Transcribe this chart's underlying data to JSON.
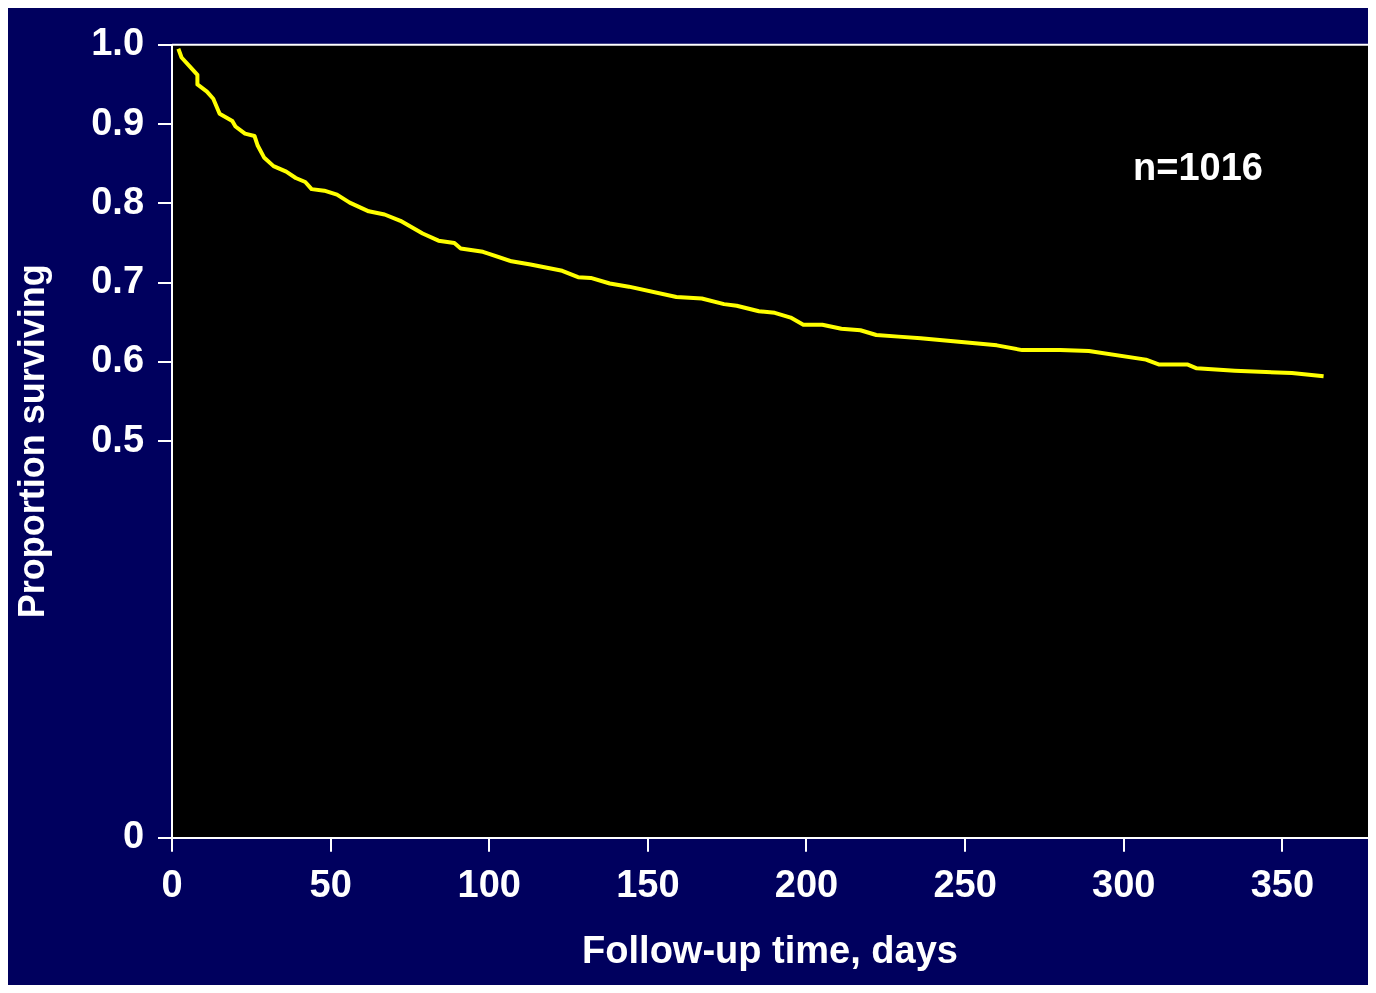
{
  "chart_data": {
    "type": "line",
    "xlabel": "Follow-up time, days",
    "ylabel": "Proportion surviving",
    "annotations": [
      "n=1016"
    ],
    "x": [
      2,
      3,
      6,
      8,
      8,
      11,
      13,
      15,
      19,
      20,
      23,
      26,
      27,
      29,
      32,
      36,
      39,
      42,
      44,
      48,
      52,
      56,
      62,
      67,
      72,
      79,
      84,
      89,
      91,
      98,
      107,
      113,
      123,
      128,
      132,
      138,
      144,
      159,
      167,
      174,
      178,
      185,
      190,
      195,
      199,
      205,
      211,
      217,
      222,
      229,
      236,
      260,
      268,
      280,
      289,
      307,
      311,
      320,
      323,
      335,
      353,
      363
    ],
    "series": [
      {
        "color": "#ffff00",
        "values": [
          0.995,
          0.984,
          0.971,
          0.962,
          0.95,
          0.941,
          0.932,
          0.913,
          0.904,
          0.897,
          0.888,
          0.885,
          0.873,
          0.858,
          0.847,
          0.84,
          0.832,
          0.827,
          0.818,
          0.816,
          0.811,
          0.801,
          0.79,
          0.786,
          0.778,
          0.762,
          0.753,
          0.75,
          0.743,
          0.739,
          0.727,
          0.723,
          0.715,
          0.707,
          0.706,
          0.699,
          0.695,
          0.682,
          0.68,
          0.673,
          0.671,
          0.664,
          0.662,
          0.656,
          0.647,
          0.647,
          0.642,
          0.64,
          0.634,
          0.632,
          0.63,
          0.621,
          0.615,
          0.615,
          0.614,
          0.603,
          0.597,
          0.597,
          0.592,
          0.589,
          0.586,
          0.582
        ]
      }
    ],
    "xlim": [
      0,
      377
    ],
    "xticks": [
      0,
      50,
      100,
      150,
      200,
      250,
      300,
      350
    ],
    "ylim": [
      0,
      1.0
    ],
    "yticks": [
      0,
      0.5,
      0.6,
      0.7,
      0.8,
      0.9,
      {
        "value": 1.0,
        "label": "1.0"
      }
    ],
    "grid": false,
    "legend": false,
    "marker": "none",
    "line_style": "solid"
  }
}
